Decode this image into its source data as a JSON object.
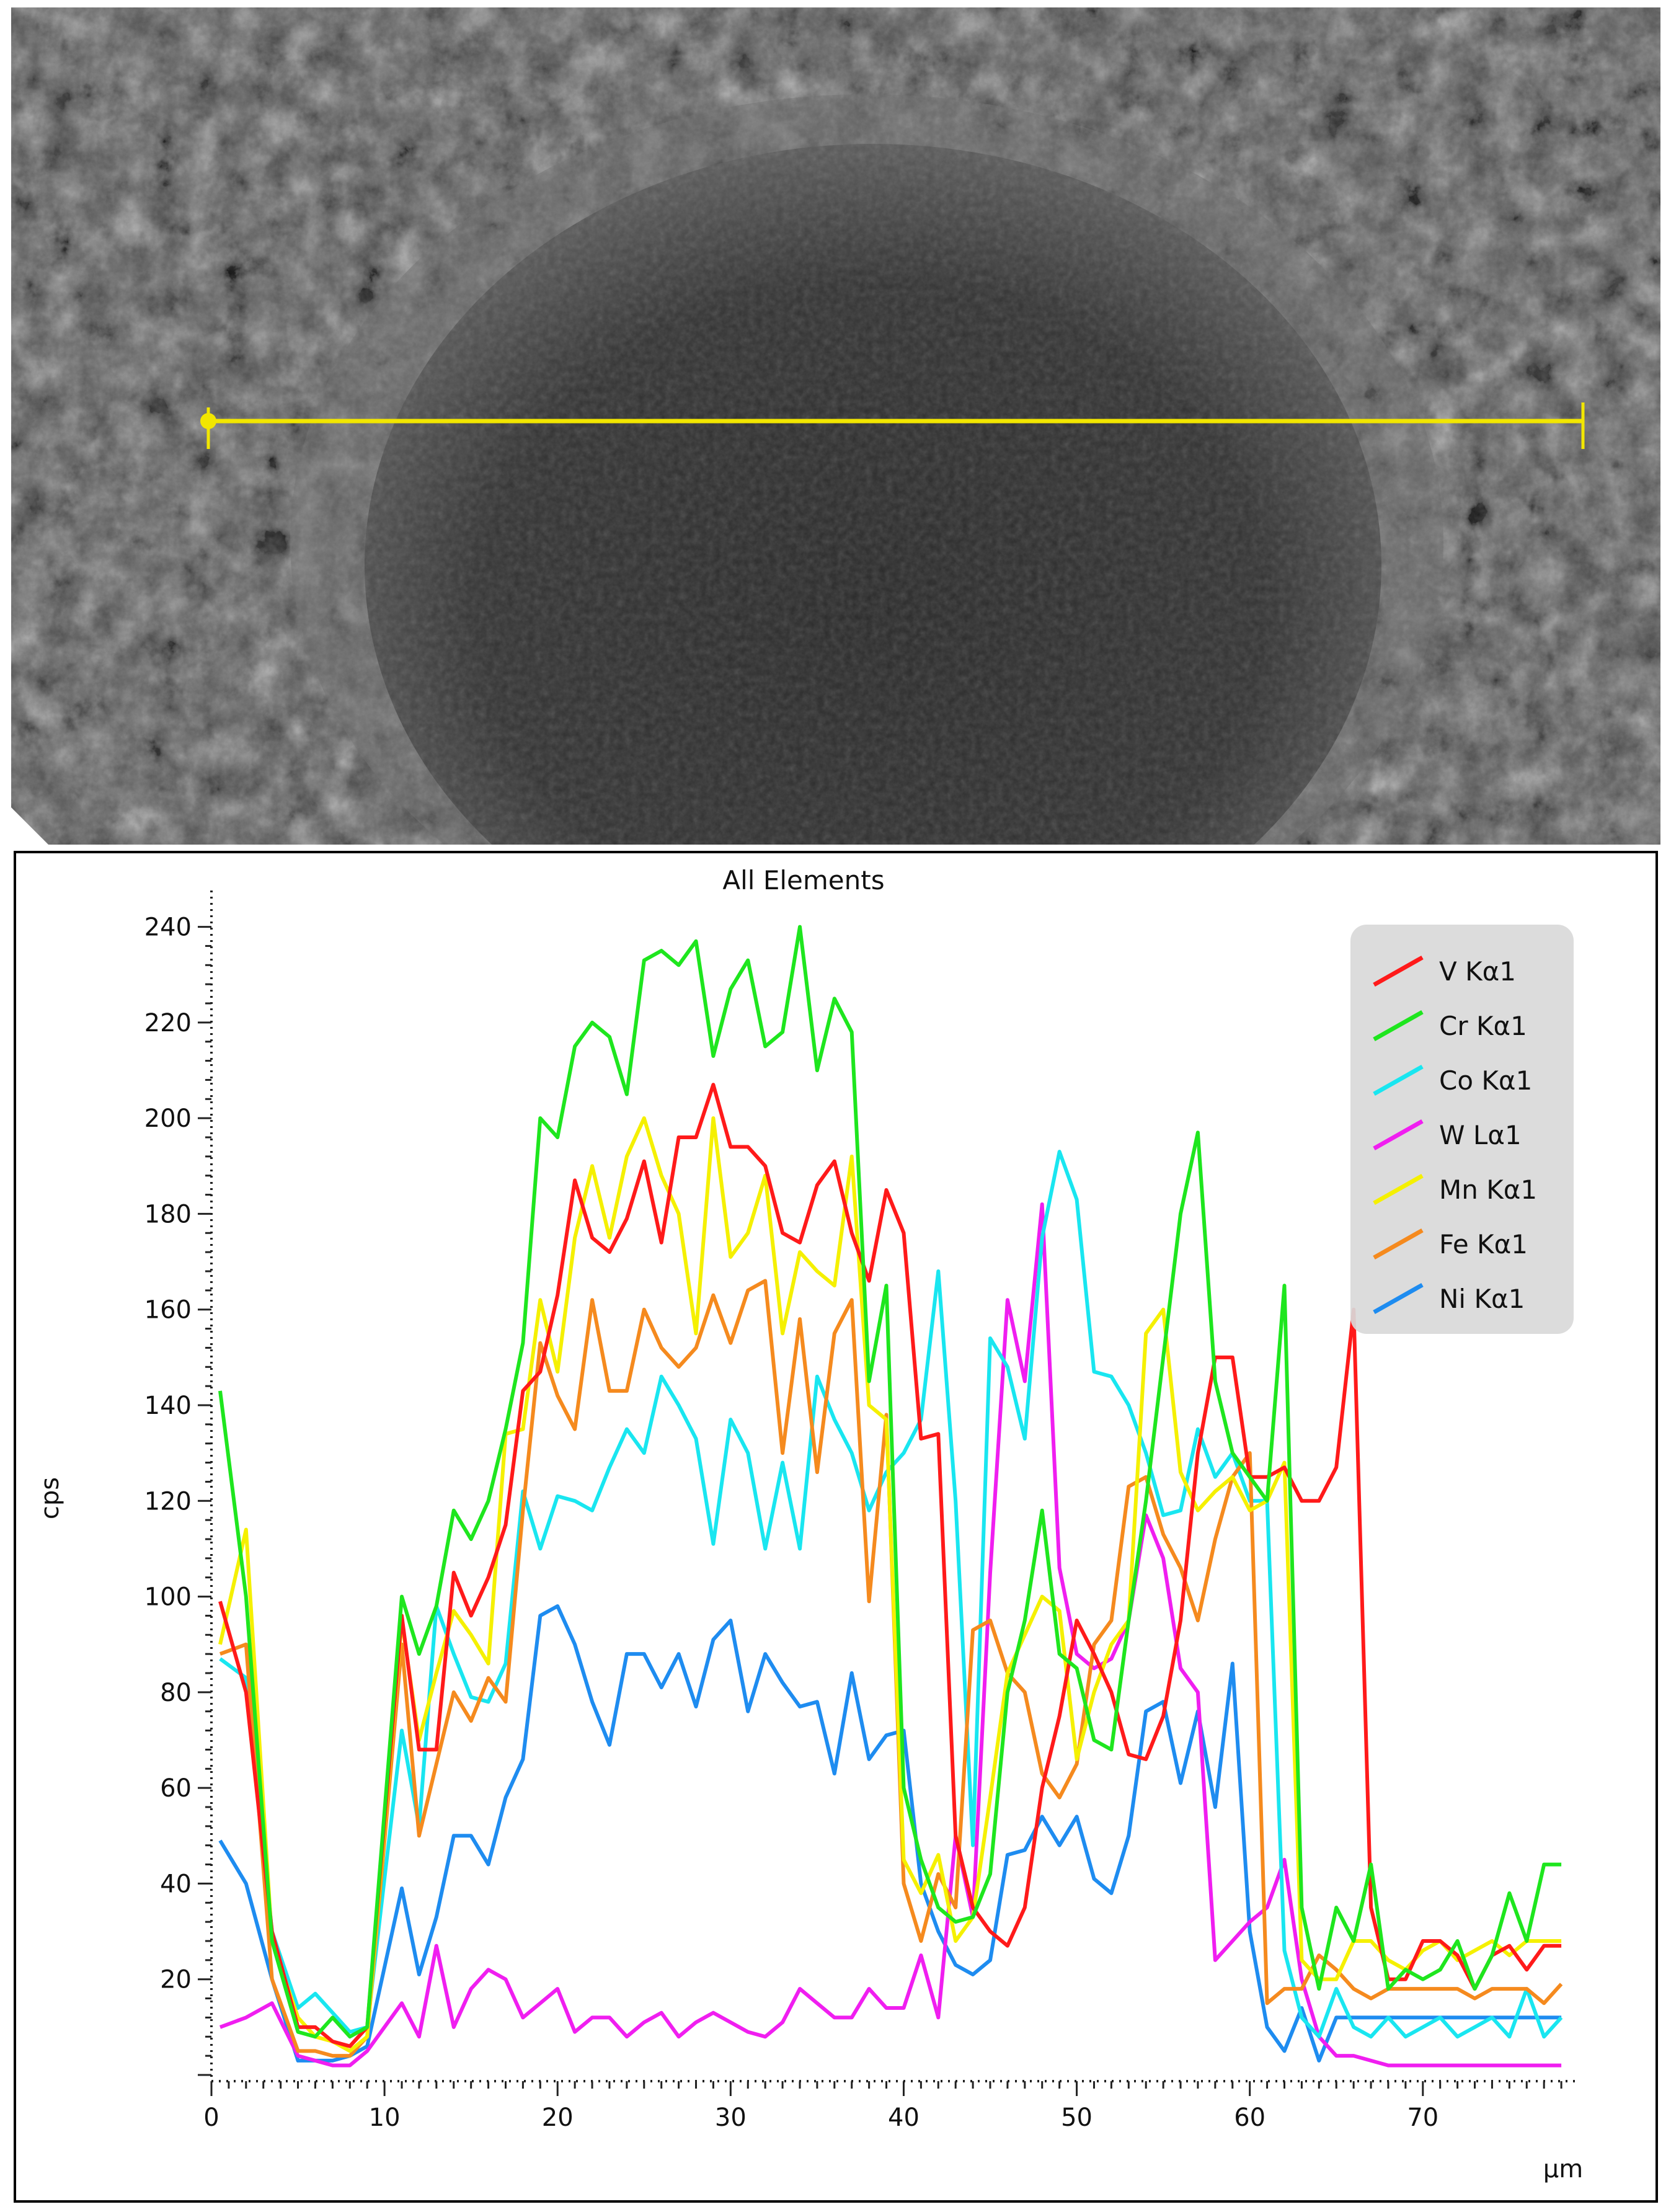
{
  "image": {
    "kind": "SEM micrograph with EDS line-scan marker",
    "scan_line_color": "#f2e600"
  },
  "chart_data": {
    "type": "line",
    "title": "All Elements",
    "xlabel": "µm",
    "ylabel": "cps",
    "xlim": [
      0,
      79
    ],
    "ylim": [
      0,
      245
    ],
    "x_ticks": [
      0,
      10,
      20,
      30,
      40,
      50,
      60,
      70
    ],
    "y_ticks": [
      20,
      40,
      60,
      80,
      100,
      120,
      140,
      160,
      180,
      200,
      220,
      240
    ],
    "grid": false,
    "legend_position": "top-right",
    "series": [
      {
        "name": "V Kα1",
        "color": "#ff1a1a",
        "x": [
          0.5,
          2,
          3.5,
          5,
          6,
          7,
          8,
          9,
          11,
          12,
          13,
          14,
          15,
          16,
          17,
          18,
          19,
          20,
          21,
          22,
          23,
          24,
          25,
          26,
          27,
          28,
          29,
          30,
          31,
          32,
          33,
          34,
          35,
          36,
          37,
          38,
          39,
          40,
          41,
          42,
          43,
          44,
          45,
          46,
          47,
          48,
          49,
          50,
          51,
          52,
          53,
          54,
          55,
          56,
          57,
          58,
          59,
          60,
          61,
          62,
          63,
          64,
          65,
          66,
          67,
          68,
          69,
          70,
          71,
          72,
          73,
          74,
          75,
          76,
          77,
          78
        ],
        "y": [
          99,
          80,
          30,
          10,
          10,
          7,
          6,
          10,
          96,
          68,
          68,
          105,
          96,
          104,
          115,
          143,
          147,
          163,
          187,
          175,
          172,
          179,
          191,
          174,
          196,
          196,
          207,
          194,
          194,
          190,
          176,
          174,
          186,
          191,
          176,
          166,
          185,
          176,
          133,
          134,
          50,
          35,
          30,
          27,
          35,
          60,
          75,
          95,
          88,
          80,
          67,
          66,
          75,
          95,
          130,
          150,
          150,
          125,
          125,
          127,
          120,
          120,
          127,
          160,
          35,
          20,
          20,
          28,
          28,
          25,
          18,
          25,
          27,
          22,
          27,
          27
        ]
      },
      {
        "name": "Cr Kα1",
        "color": "#1ee61e",
        "x": [
          0.5,
          2,
          3.5,
          5,
          6,
          7,
          8,
          9,
          11,
          12,
          13,
          14,
          15,
          16,
          17,
          18,
          19,
          20,
          21,
          22,
          23,
          24,
          25,
          26,
          27,
          28,
          29,
          30,
          31,
          32,
          33,
          34,
          35,
          36,
          37,
          38,
          39,
          40,
          41,
          42,
          43,
          44,
          45,
          46,
          47,
          48,
          49,
          50,
          51,
          52,
          53,
          54,
          55,
          56,
          57,
          58,
          59,
          60,
          61,
          62,
          63,
          64,
          65,
          66,
          67,
          68,
          69,
          70,
          71,
          72,
          73,
          74,
          75,
          76,
          77,
          78
        ],
        "y": [
          143,
          100,
          28,
          9,
          8,
          12,
          8,
          10,
          100,
          88,
          98,
          118,
          112,
          120,
          135,
          153,
          200,
          196,
          215,
          220,
          217,
          205,
          233,
          235,
          232,
          237,
          213,
          227,
          233,
          215,
          218,
          240,
          210,
          225,
          218,
          145,
          165,
          60,
          45,
          35,
          32,
          33,
          42,
          80,
          95,
          118,
          88,
          85,
          70,
          68,
          95,
          120,
          150,
          180,
          197,
          145,
          130,
          125,
          120,
          165,
          35,
          18,
          35,
          28,
          44,
          18,
          22,
          20,
          22,
          28,
          18,
          25,
          38,
          28,
          44,
          44
        ]
      },
      {
        "name": "Co Kα1",
        "color": "#19e6f0",
        "x": [
          0.5,
          2,
          3.5,
          5,
          6,
          7,
          8,
          9,
          11,
          12,
          13,
          14,
          15,
          16,
          17,
          18,
          19,
          20,
          21,
          22,
          23,
          24,
          25,
          26,
          27,
          28,
          29,
          30,
          31,
          32,
          33,
          34,
          35,
          36,
          37,
          38,
          39,
          40,
          41,
          42,
          43,
          44,
          45,
          46,
          47,
          48,
          49,
          50,
          51,
          52,
          53,
          54,
          55,
          56,
          57,
          58,
          59,
          60,
          61,
          62,
          63,
          64,
          65,
          66,
          67,
          68,
          69,
          70,
          71,
          72,
          73,
          74,
          75,
          76,
          77,
          78
        ],
        "y": [
          87,
          83,
          30,
          14,
          17,
          13,
          9,
          10,
          72,
          52,
          98,
          88,
          79,
          78,
          86,
          122,
          110,
          121,
          120,
          118,
          127,
          135,
          130,
          146,
          140,
          133,
          111,
          137,
          130,
          110,
          128,
          110,
          146,
          137,
          130,
          118,
          126,
          130,
          137,
          168,
          120,
          48,
          154,
          148,
          133,
          175,
          193,
          183,
          147,
          146,
          140,
          130,
          117,
          118,
          135,
          125,
          130,
          120,
          120,
          26,
          12,
          8,
          18,
          10,
          8,
          12,
          8,
          10,
          12,
          8,
          10,
          12,
          8,
          18,
          8,
          12
        ]
      },
      {
        "name": "W Lα1",
        "color": "#f01ef0",
        "x": [
          0.5,
          2,
          3.5,
          5,
          6,
          7,
          8,
          9,
          11,
          12,
          13,
          14,
          15,
          16,
          17,
          18,
          19,
          20,
          21,
          22,
          23,
          24,
          25,
          26,
          27,
          28,
          29,
          30,
          31,
          32,
          33,
          34,
          35,
          36,
          37,
          38,
          39,
          40,
          41,
          42,
          43,
          44,
          45,
          46,
          47,
          48,
          49,
          50,
          51,
          52,
          53,
          54,
          55,
          56,
          57,
          58,
          59,
          60,
          61,
          62,
          63,
          64,
          65,
          66,
          67,
          68,
          69,
          70,
          71,
          72,
          73,
          74,
          75,
          76,
          77,
          78
        ],
        "y": [
          10,
          12,
          15,
          4,
          3,
          2,
          2,
          5,
          15,
          8,
          27,
          10,
          18,
          22,
          20,
          12,
          15,
          18,
          9,
          12,
          12,
          8,
          11,
          13,
          8,
          11,
          13,
          11,
          9,
          8,
          11,
          18,
          15,
          12,
          12,
          18,
          14,
          14,
          25,
          12,
          50,
          33,
          105,
          162,
          145,
          182,
          106,
          88,
          85,
          87,
          95,
          117,
          108,
          85,
          80,
          24,
          28,
          32,
          35,
          45,
          20,
          8,
          4,
          4,
          3,
          2,
          2,
          2,
          2,
          2,
          2,
          2,
          2,
          2,
          2,
          2
        ]
      },
      {
        "name": "Mn Kα1",
        "color": "#f5f000",
        "x": [
          0.5,
          2,
          3.5,
          5,
          6,
          7,
          8,
          9,
          11,
          12,
          13,
          14,
          15,
          16,
          17,
          18,
          19,
          20,
          21,
          22,
          23,
          24,
          25,
          26,
          27,
          28,
          29,
          30,
          31,
          32,
          33,
          34,
          35,
          36,
          37,
          38,
          39,
          40,
          41,
          42,
          43,
          44,
          45,
          46,
          47,
          48,
          49,
          50,
          51,
          52,
          53,
          54,
          55,
          56,
          57,
          58,
          59,
          60,
          61,
          62,
          63,
          64,
          65,
          66,
          67,
          68,
          69,
          70,
          71,
          72,
          73,
          74,
          75,
          76,
          77,
          78
        ],
        "y": [
          90,
          114,
          28,
          12,
          8,
          7,
          5,
          8,
          95,
          70,
          84,
          97,
          92,
          86,
          134,
          135,
          162,
          147,
          175,
          190,
          175,
          192,
          200,
          188,
          180,
          155,
          200,
          171,
          176,
          188,
          155,
          172,
          168,
          165,
          192,
          140,
          137,
          45,
          38,
          46,
          28,
          33,
          58,
          84,
          92,
          100,
          97,
          66,
          80,
          90,
          95,
          155,
          160,
          126,
          118,
          122,
          125,
          118,
          120,
          128,
          24,
          20,
          20,
          28,
          28,
          24,
          22,
          26,
          28,
          24,
          26,
          28,
          25,
          28,
          28,
          28
        ]
      },
      {
        "name": "Fe Kα1",
        "color": "#f58a1e",
        "x": [
          0.5,
          2,
          3.5,
          5,
          6,
          7,
          8,
          9,
          11,
          12,
          13,
          14,
          15,
          16,
          17,
          18,
          19,
          20,
          21,
          22,
          23,
          24,
          25,
          26,
          27,
          28,
          29,
          30,
          31,
          32,
          33,
          34,
          35,
          36,
          37,
          38,
          39,
          40,
          41,
          42,
          43,
          44,
          45,
          46,
          47,
          48,
          49,
          50,
          51,
          52,
          53,
          54,
          55,
          56,
          57,
          58,
          59,
          60,
          61,
          62,
          63,
          64,
          65,
          66,
          67,
          68,
          69,
          70,
          71,
          72,
          73,
          74,
          75,
          76,
          77,
          78
        ],
        "y": [
          88,
          90,
          20,
          5,
          5,
          4,
          4,
          8,
          90,
          50,
          65,
          80,
          74,
          83,
          78,
          118,
          153,
          142,
          135,
          162,
          143,
          143,
          160,
          152,
          148,
          152,
          163,
          153,
          164,
          166,
          130,
          158,
          126,
          155,
          162,
          99,
          138,
          40,
          28,
          42,
          35,
          93,
          95,
          84,
          80,
          63,
          58,
          65,
          90,
          95,
          123,
          125,
          113,
          106,
          95,
          112,
          125,
          130,
          15,
          18,
          18,
          25,
          22,
          18,
          16,
          18,
          18,
          18,
          18,
          18,
          16,
          18,
          18,
          18,
          15,
          19
        ]
      },
      {
        "name": "Ni Kα1",
        "color": "#1e8cf0",
        "x": [
          0.5,
          2,
          3.5,
          5,
          6,
          7,
          8,
          9,
          11,
          12,
          13,
          14,
          15,
          16,
          17,
          18,
          19,
          20,
          21,
          22,
          23,
          24,
          25,
          26,
          27,
          28,
          29,
          30,
          31,
          32,
          33,
          34,
          35,
          36,
          37,
          38,
          39,
          40,
          41,
          42,
          43,
          44,
          45,
          46,
          47,
          48,
          49,
          50,
          51,
          52,
          53,
          54,
          55,
          56,
          57,
          58,
          59,
          60,
          61,
          62,
          63,
          64,
          65,
          66,
          67,
          68,
          69,
          70,
          71,
          72,
          73,
          74,
          75,
          76,
          77,
          78
        ],
        "y": [
          49,
          40,
          20,
          3,
          3,
          3,
          4,
          6,
          39,
          21,
          33,
          50,
          50,
          44,
          58,
          66,
          96,
          98,
          90,
          78,
          69,
          88,
          88,
          81,
          88,
          77,
          91,
          95,
          76,
          88,
          82,
          77,
          78,
          63,
          84,
          66,
          71,
          72,
          40,
          30,
          23,
          21,
          24,
          46,
          47,
          54,
          48,
          54,
          41,
          38,
          50,
          76,
          78,
          61,
          76,
          56,
          86,
          30,
          10,
          5,
          14,
          3,
          12,
          12,
          12,
          12,
          12,
          12,
          12,
          12,
          12,
          12,
          12,
          12,
          12,
          12
        ]
      }
    ]
  }
}
